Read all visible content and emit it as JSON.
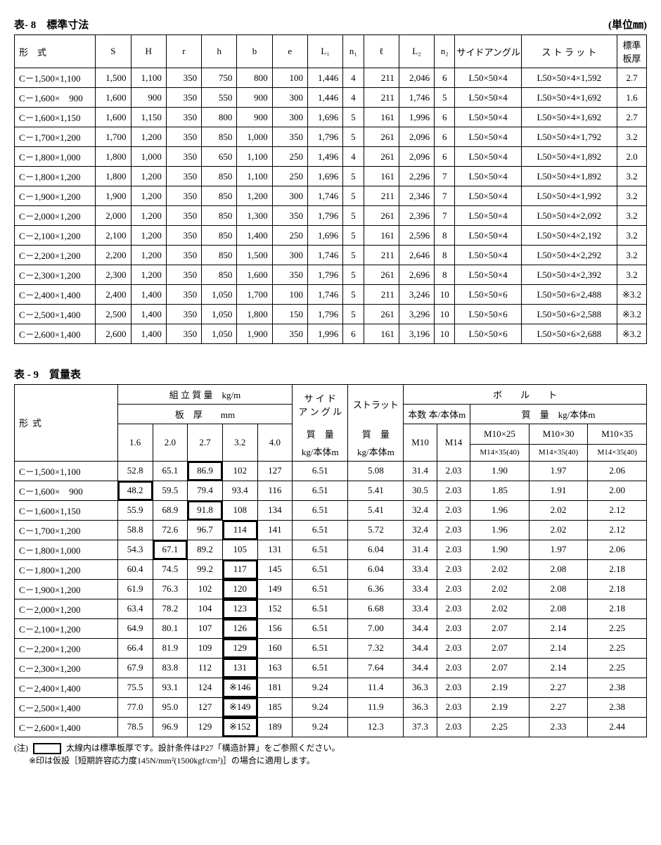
{
  "table8": {
    "title": "表- 8　標準寸法",
    "unit": "(単位㎜)",
    "headers": [
      "形　式",
      "S",
      "H",
      "r",
      "h",
      "b",
      "e",
      "L₁",
      "n₁",
      "ℓ",
      "L₂",
      "n₂",
      "サイドアングル",
      "ス ト ラ ッ ト",
      "標準\n板厚"
    ],
    "rows": [
      [
        "C－1,500×1,100",
        "1,500",
        "1,100",
        "350",
        "750",
        "800",
        "100",
        "1,446",
        "4",
        "211",
        "2,046",
        "6",
        "L50×50×4",
        "L50×50×4×1,592",
        "2.7"
      ],
      [
        "C－1,600×　900",
        "1,600",
        "900",
        "350",
        "550",
        "900",
        "300",
        "1,446",
        "4",
        "211",
        "1,746",
        "5",
        "L50×50×4",
        "L50×50×4×1,692",
        "1.6"
      ],
      [
        "C－1,600×1,150",
        "1,600",
        "1,150",
        "350",
        "800",
        "900",
        "300",
        "1,696",
        "5",
        "161",
        "1,996",
        "6",
        "L50×50×4",
        "L50×50×4×1,692",
        "2.7"
      ],
      [
        "C－1,700×1,200",
        "1,700",
        "1,200",
        "350",
        "850",
        "1,000",
        "350",
        "1,796",
        "5",
        "261",
        "2,096",
        "6",
        "L50×50×4",
        "L50×50×4×1,792",
        "3.2"
      ],
      [
        "C－1,800×1,000",
        "1,800",
        "1,000",
        "350",
        "650",
        "1,100",
        "250",
        "1,496",
        "4",
        "261",
        "2,096",
        "6",
        "L50×50×4",
        "L50×50×4×1,892",
        "2.0"
      ],
      [
        "C－1,800×1,200",
        "1,800",
        "1,200",
        "350",
        "850",
        "1,100",
        "250",
        "1,696",
        "5",
        "161",
        "2,296",
        "7",
        "L50×50×4",
        "L50×50×4×1,892",
        "3.2"
      ],
      [
        "C－1,900×1,200",
        "1,900",
        "1,200",
        "350",
        "850",
        "1,200",
        "300",
        "1,746",
        "5",
        "211",
        "2,346",
        "7",
        "L50×50×4",
        "L50×50×4×1,992",
        "3.2"
      ],
      [
        "C－2,000×1,200",
        "2,000",
        "1,200",
        "350",
        "850",
        "1,300",
        "350",
        "1,796",
        "5",
        "261",
        "2,396",
        "7",
        "L50×50×4",
        "L50×50×4×2,092",
        "3.2"
      ],
      [
        "C－2,100×1,200",
        "2,100",
        "1,200",
        "350",
        "850",
        "1,400",
        "250",
        "1,696",
        "5",
        "161",
        "2,596",
        "8",
        "L50×50×4",
        "L50×50×4×2,192",
        "3.2"
      ],
      [
        "C－2,200×1,200",
        "2,200",
        "1,200",
        "350",
        "850",
        "1,500",
        "300",
        "1,746",
        "5",
        "211",
        "2,646",
        "8",
        "L50×50×4",
        "L50×50×4×2,292",
        "3.2"
      ],
      [
        "C－2,300×1,200",
        "2,300",
        "1,200",
        "350",
        "850",
        "1,600",
        "350",
        "1,796",
        "5",
        "261",
        "2,696",
        "8",
        "L50×50×4",
        "L50×50×4×2,392",
        "3.2"
      ],
      [
        "C－2,400×1,400",
        "2,400",
        "1,400",
        "350",
        "1,050",
        "1,700",
        "100",
        "1,746",
        "5",
        "211",
        "3,246",
        "10",
        "L50×50×6",
        "L50×50×6×2,488",
        "※3.2"
      ],
      [
        "C－2,500×1,400",
        "2,500",
        "1,400",
        "350",
        "1,050",
        "1,800",
        "150",
        "1,796",
        "5",
        "261",
        "3,296",
        "10",
        "L50×50×6",
        "L50×50×6×2,588",
        "※3.2"
      ],
      [
        "C－2,600×1,400",
        "2,600",
        "1,400",
        "350",
        "1,050",
        "1,900",
        "350",
        "1,996",
        "6",
        "161",
        "3,196",
        "10",
        "L50×50×6",
        "L50×50×6×2,688",
        "※3.2"
      ]
    ],
    "alignRight": [
      1,
      2,
      3,
      4,
      5,
      6,
      7,
      9,
      10
    ]
  },
  "table9": {
    "title": "表 - 9　質量表",
    "h1_assembly": "組 立 質 量　kg/m",
    "h1_thickness": "板　厚　　mm",
    "thicknesses": [
      "1.6",
      "2.0",
      "2.7",
      "3.2",
      "4.0"
    ],
    "h_sideangle_l1": "サ イ ド",
    "h_sideangle_l2": "ア ン グ ル",
    "h_mass": "質　量",
    "h_perbody": "kg/本体m",
    "h_strut": "ストラット",
    "h_bolt": "ボ　　ル　　ト",
    "h_count": "本数 本/本体m",
    "h_bq": "質　量　kg/本体m",
    "h_m10": "M10",
    "h_m14": "M14",
    "h_bq1a": "M10×25",
    "h_bq1b": "M14×35(40)",
    "h_bq2a": "M10×30",
    "h_bq2b": "M14×35(40)",
    "h_bq3a": "M10×35",
    "h_bq3b": "M14×35(40)",
    "rows": [
      [
        "C－1,500×1,100",
        "52.8",
        "65.1",
        "86.9",
        "102",
        "127",
        "6.51",
        "5.08",
        "31.4",
        "2.03",
        "1.90",
        "1.97",
        "2.06"
      ],
      [
        "C－1,600×　900",
        "48.2",
        "59.5",
        "79.4",
        "93.4",
        "116",
        "6.51",
        "5.41",
        "30.5",
        "2.03",
        "1.85",
        "1.91",
        "2.00"
      ],
      [
        "C－1,600×1,150",
        "55.9",
        "68.9",
        "91.8",
        "108",
        "134",
        "6.51",
        "5.41",
        "32.4",
        "2.03",
        "1.96",
        "2.02",
        "2.12"
      ],
      [
        "C－1,700×1,200",
        "58.8",
        "72.6",
        "96.7",
        "114",
        "141",
        "6.51",
        "5.72",
        "32.4",
        "2.03",
        "1.96",
        "2.02",
        "2.12"
      ],
      [
        "C－1,800×1,000",
        "54.3",
        "67.1",
        "89.2",
        "105",
        "131",
        "6.51",
        "6.04",
        "31.4",
        "2.03",
        "1.90",
        "1.97",
        "2.06"
      ],
      [
        "C－1,800×1,200",
        "60.4",
        "74.5",
        "99.2",
        "117",
        "145",
        "6.51",
        "6.04",
        "33.4",
        "2.03",
        "2.02",
        "2.08",
        "2.18"
      ],
      [
        "C－1,900×1,200",
        "61.9",
        "76.3",
        "102",
        "120",
        "149",
        "6.51",
        "6.36",
        "33.4",
        "2.03",
        "2.02",
        "2.08",
        "2.18"
      ],
      [
        "C－2,000×1,200",
        "63.4",
        "78.2",
        "104",
        "123",
        "152",
        "6.51",
        "6.68",
        "33.4",
        "2.03",
        "2.02",
        "2.08",
        "2.18"
      ],
      [
        "C－2,100×1,200",
        "64.9",
        "80.1",
        "107",
        "126",
        "156",
        "6.51",
        "7.00",
        "34.4",
        "2.03",
        "2.07",
        "2.14",
        "2.25"
      ],
      [
        "C－2,200×1,200",
        "66.4",
        "81.9",
        "109",
        "129",
        "160",
        "6.51",
        "7.32",
        "34.4",
        "2.03",
        "2.07",
        "2.14",
        "2.25"
      ],
      [
        "C－2,300×1,200",
        "67.9",
        "83.8",
        "112",
        "131",
        "163",
        "6.51",
        "7.64",
        "34.4",
        "2.03",
        "2.07",
        "2.14",
        "2.25"
      ],
      [
        "C－2,400×1,400",
        "75.5",
        "93.1",
        "124",
        "※146",
        "181",
        "9.24",
        "11.4",
        "36.3",
        "2.03",
        "2.19",
        "2.27",
        "2.38"
      ],
      [
        "C－2,500×1,400",
        "77.0",
        "95.0",
        "127",
        "※149",
        "185",
        "9.24",
        "11.9",
        "36.3",
        "2.03",
        "2.19",
        "2.27",
        "2.38"
      ],
      [
        "C－2,600×1,400",
        "78.5",
        "96.9",
        "129",
        "※152",
        "189",
        "9.24",
        "12.3",
        "37.3",
        "2.03",
        "2.25",
        "2.33",
        "2.44"
      ]
    ],
    "boldCells": [
      [
        0,
        3
      ],
      [
        1,
        1
      ],
      [
        2,
        3
      ],
      [
        3,
        4
      ],
      [
        4,
        2
      ],
      [
        5,
        4
      ],
      [
        6,
        4
      ],
      [
        7,
        4
      ],
      [
        8,
        4
      ],
      [
        9,
        4
      ],
      [
        10,
        4
      ],
      [
        11,
        4
      ],
      [
        12,
        4
      ],
      [
        13,
        4
      ]
    ]
  },
  "notes": {
    "prefix": "(注)",
    "line1": "太線内は標準板厚です。設計条件はP27「構造計算」をご参照ください。",
    "line2": "※印は仮設［短期許容応力度145N/mm²(1500kgf/cm²)］の場合に適用します。"
  }
}
